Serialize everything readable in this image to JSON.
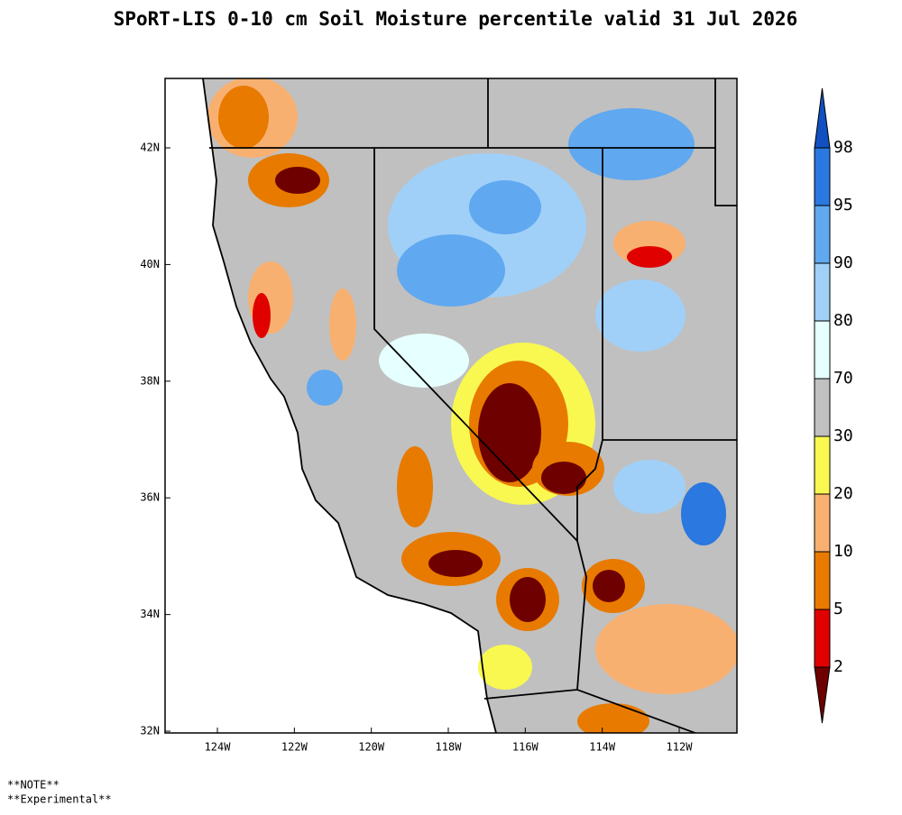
{
  "header": {
    "title": "SPoRT-LIS 0-10 cm Soil Moisture percentile valid 31 Jul 2026"
  },
  "map": {
    "lonlim": [
      -125.36,
      -110.5
    ],
    "latlim": [
      31.97,
      43.19
    ],
    "lon_ticks": [
      {
        "value": -124,
        "label": "124W"
      },
      {
        "value": -122,
        "label": "122W"
      },
      {
        "value": -120,
        "label": "120W"
      },
      {
        "value": -118,
        "label": "118W"
      },
      {
        "value": -116,
        "label": "116W"
      },
      {
        "value": -114,
        "label": "114W"
      },
      {
        "value": -112,
        "label": "112W"
      }
    ],
    "lat_ticks": [
      {
        "value": 42,
        "label": "42N"
      },
      {
        "value": 40,
        "label": "40N"
      },
      {
        "value": 38,
        "label": "38N"
      },
      {
        "value": 36,
        "label": "36N"
      },
      {
        "value": 34,
        "label": "34N"
      },
      {
        "value": 32,
        "label": "32N"
      }
    ]
  },
  "colorbar": {
    "levels": [
      2,
      5,
      10,
      20,
      30,
      70,
      80,
      90,
      95,
      98
    ],
    "colors": [
      "#6e0000",
      "#e00000",
      "#e87a00",
      "#f8b070",
      "#f8f850",
      "#c0c0c0",
      "#e6ffff",
      "#a0d0f8",
      "#60a8f0",
      "#2a78e0",
      "#1050c0"
    ]
  },
  "notes": [
    "**NOTE**",
    "**Experimental**"
  ]
}
